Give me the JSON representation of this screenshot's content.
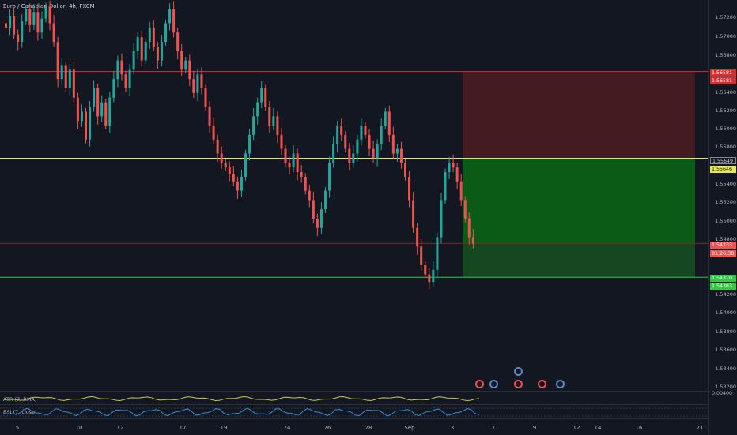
{
  "title": "Euro / Canadian Dollar, 4h, FXCM",
  "price_ticks": [
    "1.57200",
    "1.57000",
    "1.56800",
    "1.56400",
    "1.56200",
    "1.56000",
    "1.55800",
    "1.55400",
    "1.55200",
    "1.55000",
    "1.54800",
    "1.54200",
    "1.54000",
    "1.53800",
    "1.53600",
    "1.53400",
    "1.53200"
  ],
  "price_labels": {
    "stop_1": "1.56581",
    "stop_2": "1.56581",
    "entry": "1.55649",
    "entry2": "1.55646",
    "last": "1.54733",
    "countdown": "01:26:38",
    "target_1": "1.54370",
    "target_2": "1.54363"
  },
  "x_ticks": [
    "5",
    "10",
    "12",
    "17",
    "19",
    "24",
    "26",
    "28",
    "Sep",
    "3",
    "7",
    "9",
    "12",
    "14",
    "16",
    "21"
  ],
  "indicators": {
    "atr_label": "ATR (7, RMA)",
    "atr_value": "0.00400",
    "rsi_label": "RSI (7, close)"
  },
  "colors": {
    "background": "#131722",
    "up": "#26a69a",
    "down": "#ef5350",
    "stop_zone": "#4a1c21",
    "target_zone": "#0b5e16",
    "entry_line": "#e8e84a",
    "target_line": "#2ecc40",
    "stop_line": "#d32f2f"
  },
  "chart_data": {
    "type": "candlestick",
    "title": "Euro / Canadian Dollar, 4h, FXCM",
    "closes": [
      1.5705,
      1.5718,
      1.5698,
      1.569,
      1.5712,
      1.5725,
      1.5708,
      1.5722,
      1.57,
      1.5715,
      1.5728,
      1.571,
      1.569,
      1.565,
      1.5665,
      1.564,
      1.566,
      1.563,
      1.5605,
      1.5615,
      1.5585,
      1.562,
      1.564,
      1.561,
      1.5625,
      1.56,
      1.563,
      1.565,
      1.567,
      1.5655,
      1.564,
      1.566,
      1.568,
      1.5695,
      1.567,
      1.569,
      1.5705,
      1.5685,
      1.567,
      1.569,
      1.571,
      1.5725,
      1.57,
      1.568,
      1.566,
      1.567,
      1.565,
      1.5635,
      1.5655,
      1.564,
      1.562,
      1.56,
      1.5585,
      1.557,
      1.556,
      1.5555,
      1.5548,
      1.554,
      1.553,
      1.5545,
      1.557,
      1.559,
      1.561,
      1.5625,
      1.564,
      1.562,
      1.56,
      1.561,
      1.559,
      1.5575,
      1.556,
      1.5555,
      1.557,
      1.555,
      1.5545,
      1.553,
      1.552,
      1.55,
      1.549,
      1.551,
      1.553,
      1.556,
      1.558,
      1.56,
      1.559,
      1.5575,
      1.556,
      1.557,
      1.5585,
      1.56,
      1.559,
      1.5575,
      1.5565,
      1.558,
      1.56,
      1.5615,
      1.559,
      1.557,
      1.5575,
      1.556,
      1.5545,
      1.552,
      1.549,
      1.547,
      1.545,
      1.544,
      1.5432,
      1.5445,
      1.548,
      1.552,
      1.555,
      1.556,
      1.5555,
      1.554,
      1.552,
      1.55,
      1.548,
      1.5473
    ],
    "levels": {
      "stop": 1.56581,
      "entry": 1.55649,
      "target": 1.5437,
      "last": 1.54733
    },
    "ylim": [
      1.5315,
      1.5735
    ]
  },
  "events": [
    {
      "color": "#ef5350"
    },
    {
      "color": "#5d88c5"
    },
    {
      "color": "#5d88c5"
    },
    {
      "color": "#ef5350"
    },
    {
      "color": "#ef5350"
    },
    {
      "color": "#5d88c5"
    }
  ]
}
